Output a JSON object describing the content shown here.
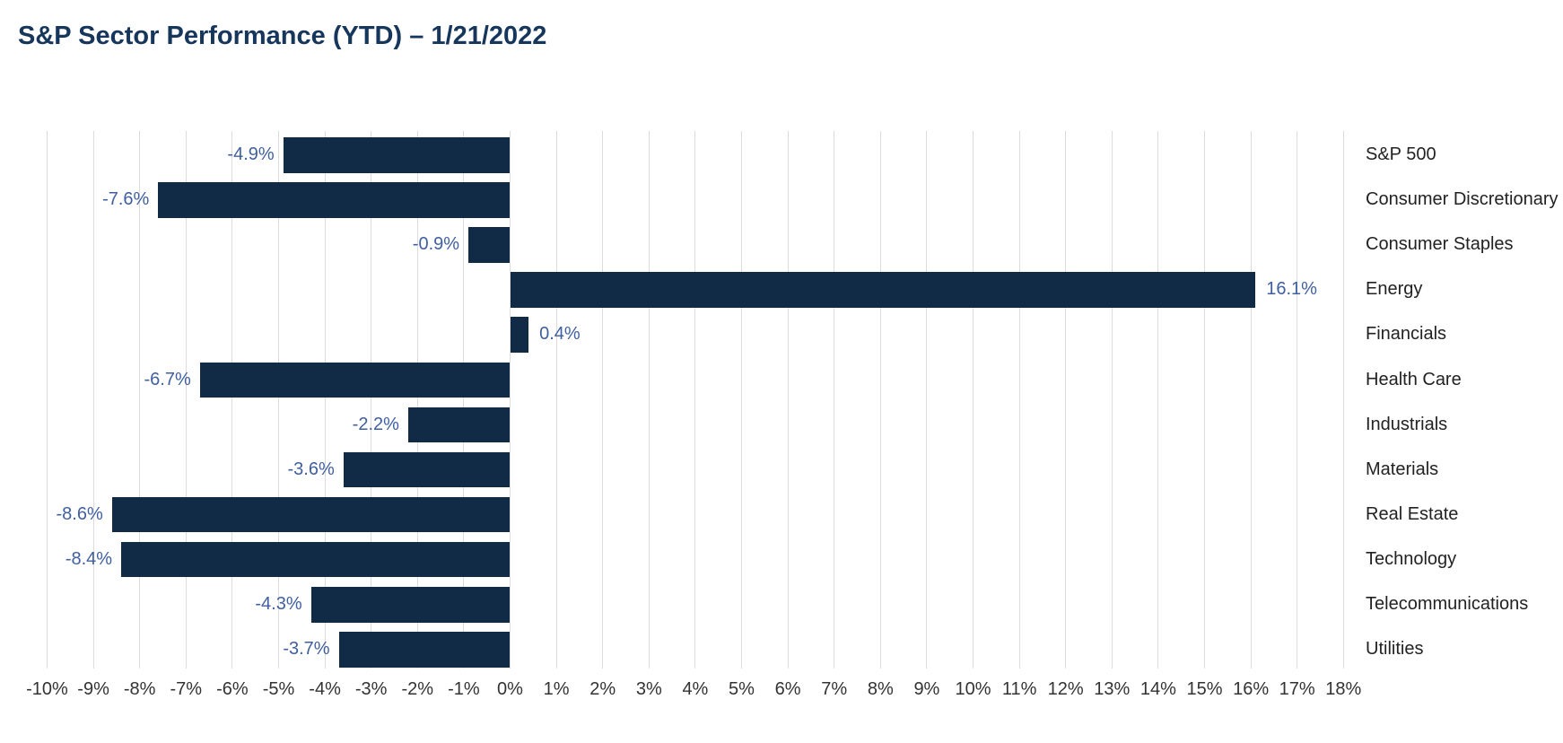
{
  "title": "S&P Sector Performance (YTD) – 1/21/2022",
  "colors": {
    "title_text": "#17365c",
    "bar_fill": "#112a45",
    "value_label_text": "#3f5fa0",
    "category_text": "#222222",
    "axis_tick_text": "#333333",
    "gridline": "#dcdcdc",
    "background": "#ffffff"
  },
  "chart_data": {
    "type": "bar",
    "orientation": "horizontal",
    "title": "S&P Sector Performance (YTD) – 1/21/2022",
    "categories": [
      "S&P 500",
      "Consumer Discretionary",
      "Consumer Staples",
      "Energy",
      "Financials",
      "Health Care",
      "Industrials",
      "Materials",
      "Real Estate",
      "Technology",
      "Telecommunications",
      "Utilities"
    ],
    "values": [
      -4.9,
      -7.6,
      -0.9,
      16.1,
      0.4,
      -6.7,
      -2.2,
      -3.6,
      -8.6,
      -8.4,
      -4.3,
      -3.7
    ],
    "value_labels": [
      "-4.9%",
      "-7.6%",
      "-0.9%",
      "16.1%",
      "0.4%",
      "-6.7%",
      "-2.2%",
      "-3.6%",
      "-8.6%",
      "-8.4%",
      "-4.3%",
      "-3.7%"
    ],
    "xlim": [
      -10,
      18
    ],
    "tick_step": 1,
    "tick_labels": [
      "-10%",
      "-9%",
      "-8%",
      "-7%",
      "-6%",
      "-5%",
      "-4%",
      "-3%",
      "-2%",
      "-1%",
      "0%",
      "1%",
      "2%",
      "3%",
      "4%",
      "5%",
      "6%",
      "7%",
      "8%",
      "9%",
      "10%",
      "11%",
      "12%",
      "13%",
      "14%",
      "15%",
      "16%",
      "17%",
      "18%"
    ],
    "grid": true,
    "legend": "none",
    "category_label_position": "right",
    "value_label_position": "outside-end"
  }
}
